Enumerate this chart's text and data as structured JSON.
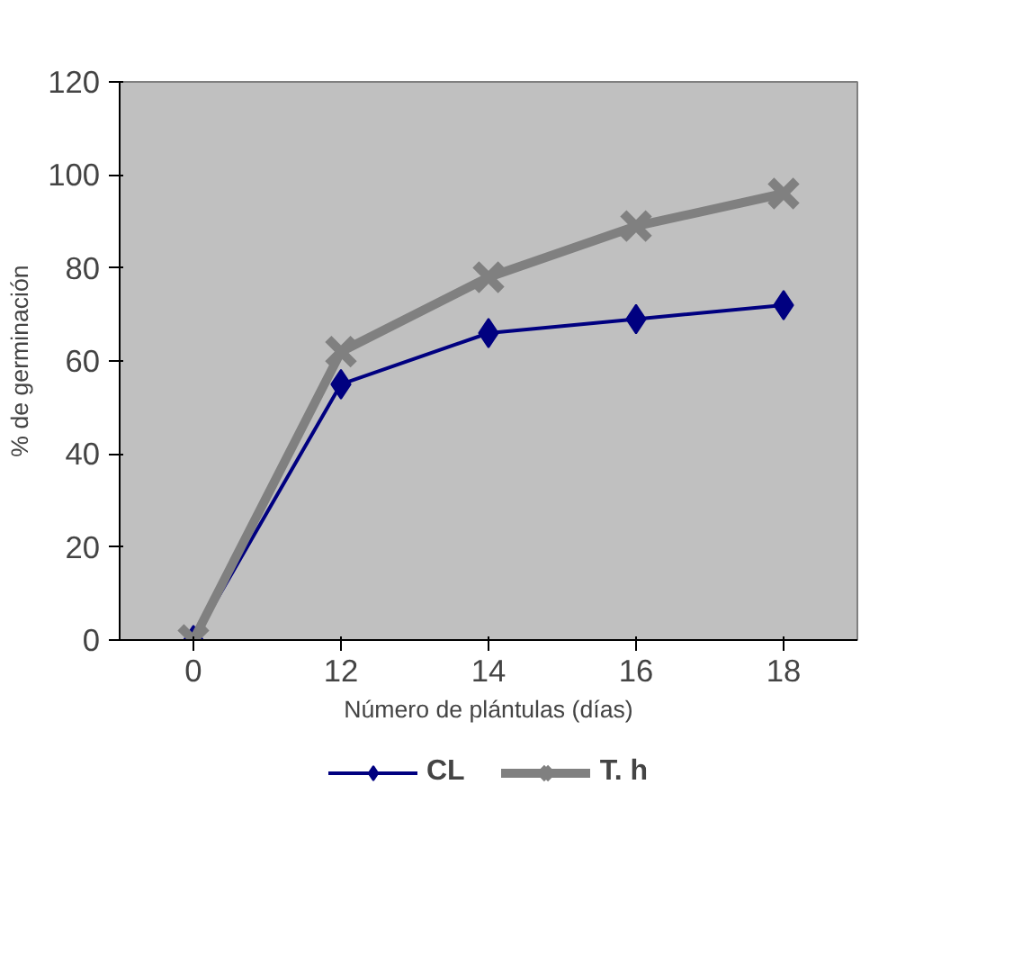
{
  "chart_data": {
    "type": "line",
    "xlabel": "Número de plántulas (días)",
    "ylabel": "% de germinación",
    "categories": [
      "0",
      "12",
      "14",
      "16",
      "18"
    ],
    "ylim": [
      0,
      120
    ],
    "yticks": [
      0,
      20,
      40,
      60,
      80,
      100,
      120
    ],
    "grid": false,
    "legend": "bottom",
    "line_style": "solid",
    "series": [
      {
        "name": "CL",
        "color": "#000080",
        "values": [
          0,
          55,
          66,
          69,
          72
        ],
        "marker": "diamond"
      },
      {
        "name": "T. h",
        "color": "#808080",
        "values": [
          0,
          62,
          78,
          89,
          96
        ],
        "marker": "cross"
      }
    ]
  }
}
